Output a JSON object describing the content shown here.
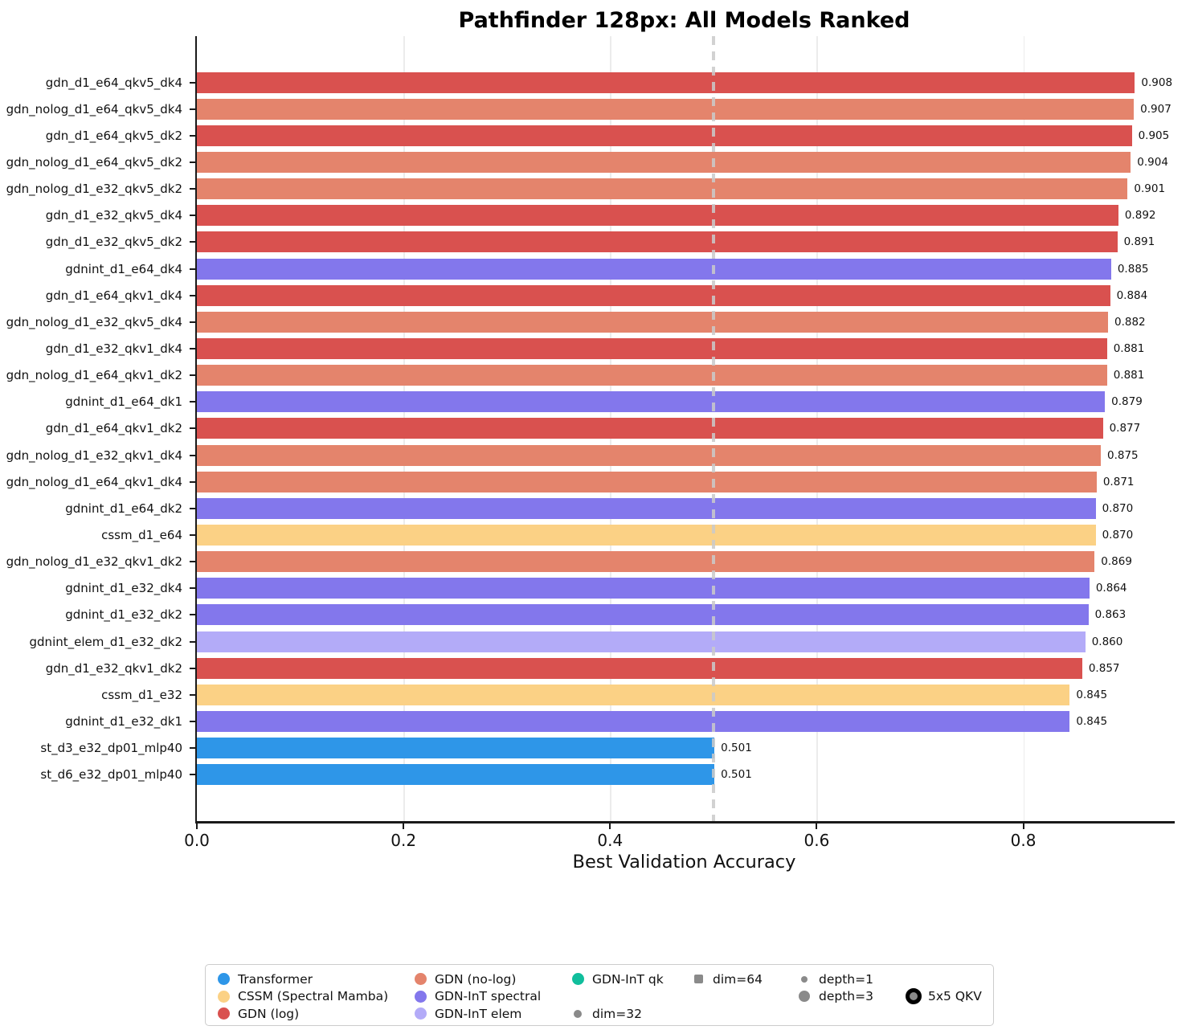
{
  "chart_data": {
    "type": "bar",
    "orientation": "horizontal",
    "title": "Pathfinder 128px: All Models Ranked",
    "xlabel": "Best Validation Accuracy",
    "xlim": [
      0,
      0.945
    ],
    "x_ticks": [
      0.0,
      0.2,
      0.4,
      0.6,
      0.8
    ],
    "x_tick_labels": [
      "0.0",
      "0.2",
      "0.4",
      "0.6",
      "0.8"
    ],
    "grid": "vertical-light",
    "reference_line": {
      "x": 0.5,
      "style": "dashed"
    },
    "value_label_format": "3-decimals",
    "bars": [
      {
        "label": "gdn_d1_e64_qkv5_dk4",
        "value": 0.908,
        "group": "gdn_log"
      },
      {
        "label": "gdn_nolog_d1_e64_qkv5_dk4",
        "value": 0.907,
        "group": "gdn_nolog"
      },
      {
        "label": "gdn_d1_e64_qkv5_dk2",
        "value": 0.905,
        "group": "gdn_log"
      },
      {
        "label": "gdn_nolog_d1_e64_qkv5_dk2",
        "value": 0.904,
        "group": "gdn_nolog"
      },
      {
        "label": "gdn_nolog_d1_e32_qkv5_dk2",
        "value": 0.901,
        "group": "gdn_nolog"
      },
      {
        "label": "gdn_d1_e32_qkv5_dk4",
        "value": 0.892,
        "group": "gdn_log"
      },
      {
        "label": "gdn_d1_e32_qkv5_dk2",
        "value": 0.891,
        "group": "gdn_log"
      },
      {
        "label": "gdnint_d1_e64_dk4",
        "value": 0.885,
        "group": "gdnint_spectral"
      },
      {
        "label": "gdn_d1_e64_qkv1_dk4",
        "value": 0.884,
        "group": "gdn_log"
      },
      {
        "label": "gdn_nolog_d1_e32_qkv5_dk4",
        "value": 0.882,
        "group": "gdn_nolog"
      },
      {
        "label": "gdn_d1_e32_qkv1_dk4",
        "value": 0.881,
        "group": "gdn_log"
      },
      {
        "label": "gdn_nolog_d1_e64_qkv1_dk2",
        "value": 0.881,
        "group": "gdn_nolog"
      },
      {
        "label": "gdnint_d1_e64_dk1",
        "value": 0.879,
        "group": "gdnint_spectral"
      },
      {
        "label": "gdn_d1_e64_qkv1_dk2",
        "value": 0.877,
        "group": "gdn_log"
      },
      {
        "label": "gdn_nolog_d1_e32_qkv1_dk4",
        "value": 0.875,
        "group": "gdn_nolog"
      },
      {
        "label": "gdn_nolog_d1_e64_qkv1_dk4",
        "value": 0.871,
        "group": "gdn_nolog"
      },
      {
        "label": "gdnint_d1_e64_dk2",
        "value": 0.87,
        "group": "gdnint_spectral"
      },
      {
        "label": "cssm_d1_e64",
        "value": 0.87,
        "group": "cssm"
      },
      {
        "label": "gdn_nolog_d1_e32_qkv1_dk2",
        "value": 0.869,
        "group": "gdn_nolog"
      },
      {
        "label": "gdnint_d1_e32_dk4",
        "value": 0.864,
        "group": "gdnint_spectral"
      },
      {
        "label": "gdnint_d1_e32_dk2",
        "value": 0.863,
        "group": "gdnint_spectral"
      },
      {
        "label": "gdnint_elem_d1_e32_dk2",
        "value": 0.86,
        "group": "gdnint_elem"
      },
      {
        "label": "gdn_d1_e32_qkv1_dk2",
        "value": 0.857,
        "group": "gdn_log"
      },
      {
        "label": "cssm_d1_e32",
        "value": 0.845,
        "group": "cssm"
      },
      {
        "label": "gdnint_d1_e32_dk1",
        "value": 0.845,
        "group": "gdnint_spectral"
      },
      {
        "label": "st_d3_e32_dp01_mlp40",
        "value": 0.501,
        "group": "transformer"
      },
      {
        "label": "st_d6_e32_dp01_mlp40",
        "value": 0.501,
        "group": "transformer"
      }
    ],
    "group_colors": {
      "transformer": "#2E96E8",
      "cssm": "#FBD185",
      "gdn_log": "#D9514F",
      "gdn_nolog": "#E4846C",
      "gdnint_spectral": "#8377EC",
      "gdnint_elem": "#B3ABF8",
      "gdnint_qk": "#10BE9C",
      "gray_marker": "#8A8A8A"
    }
  },
  "legend": {
    "column_offsets": [
      12,
      257,
      453,
      603,
      735,
      871
    ],
    "columns": [
      [
        {
          "label": "Transformer",
          "marker": "circle",
          "color_key": "transformer",
          "size": 15
        },
        {
          "label": "CSSM (Spectral Mamba)",
          "marker": "circle",
          "color_key": "cssm",
          "size": 15
        },
        {
          "label": "GDN (log)",
          "marker": "circle",
          "color_key": "gdn_log",
          "size": 15
        }
      ],
      [
        {
          "label": "GDN (no-log)",
          "marker": "circle",
          "color_key": "gdn_nolog",
          "size": 15
        },
        {
          "label": "GDN-InT spectral",
          "marker": "circle",
          "color_key": "gdnint_spectral",
          "size": 15
        },
        {
          "label": "GDN-InT elem",
          "marker": "circle",
          "color_key": "gdnint_elem",
          "size": 15
        }
      ],
      [
        {
          "label": "GDN-InT qk",
          "marker": "circle",
          "color_key": "gdnint_qk",
          "size": 15
        },
        null,
        {
          "label": "dim=32",
          "marker": "circle",
          "color_key": "gray_marker",
          "size": 10
        }
      ],
      [
        {
          "label": "dim=64",
          "marker": "square",
          "color_key": "gray_marker",
          "size": 11
        },
        null,
        null
      ],
      [
        {
          "label": "depth=1",
          "marker": "circle",
          "color_key": "gray_marker",
          "size": 8
        },
        {
          "label": "depth=3",
          "marker": "circle",
          "color_key": "gray_marker",
          "size": 14
        },
        null
      ],
      [
        null,
        {
          "label": "5x5 QKV",
          "marker": "ring",
          "color_key": "gray_marker",
          "size": 10,
          "ring_width": 5
        },
        null
      ]
    ]
  }
}
